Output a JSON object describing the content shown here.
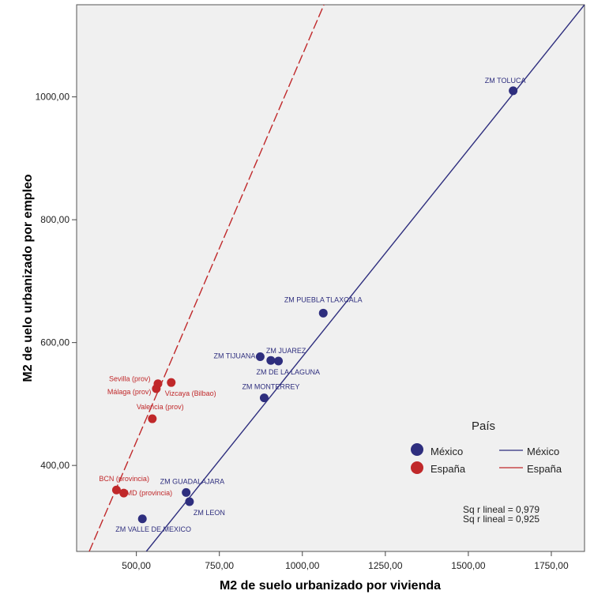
{
  "chart_data": {
    "type": "scatter",
    "xlabel": "M2 de suelo urbanizado por vivienda",
    "ylabel": "M2 de uelo urbanizado por empleo",
    "xlim": [
      320,
      1850
    ],
    "ylim": [
      260,
      1150
    ],
    "x_ticks": [
      500,
      750,
      1000,
      1250,
      1500,
      1750
    ],
    "x_tick_labels": [
      "500,00",
      "750,00",
      "1000,00",
      "1250,00",
      "1500,00",
      "1750,00"
    ],
    "y_ticks": [
      400,
      600,
      800,
      1000
    ],
    "y_tick_labels": [
      "400,00",
      "600,00",
      "800,00",
      "1000,00"
    ],
    "grid": false,
    "legend_placement": "bottom-right",
    "legend": {
      "title": "País",
      "marker_entries": [
        "México",
        "España"
      ],
      "line_entries": [
        "México",
        "España"
      ]
    },
    "fit_stats": [
      "Sq r lineal = 0,979",
      "Sq r lineal = 0,925"
    ],
    "series": [
      {
        "name": "México",
        "color": "#2e2e7e",
        "points": [
          {
            "x": 1635,
            "y": 1010,
            "label": "ZM TOLUCA"
          },
          {
            "x": 1063,
            "y": 648,
            "label": "ZM PUEBLA TLAXCALA"
          },
          {
            "x": 873,
            "y": 577,
            "label": "ZM TIJUANA"
          },
          {
            "x": 905,
            "y": 571,
            "label": "ZM JUAREZ"
          },
          {
            "x": 928,
            "y": 570,
            "label": "ZM DE LA LAGUNA"
          },
          {
            "x": 885,
            "y": 510,
            "label": "ZM MONTERREY"
          },
          {
            "x": 650,
            "y": 356,
            "label": "ZM GUADALAJARA"
          },
          {
            "x": 660,
            "y": 341,
            "label": "ZM LEON"
          },
          {
            "x": 518,
            "y": 313,
            "label": "ZM VALLE DE MEXICO"
          }
        ],
        "fit": {
          "x1": 530,
          "y1": 260,
          "x2": 1850,
          "y2": 1150
        }
      },
      {
        "name": "España",
        "color": "#c0282a",
        "points": [
          {
            "x": 565,
            "y": 533,
            "label": "Sevilla (prov)"
          },
          {
            "x": 560,
            "y": 525,
            "label": "Málaga (prov)"
          },
          {
            "x": 605,
            "y": 535,
            "label": "Vizcaya (Bilbao)"
          },
          {
            "x": 548,
            "y": 476,
            "label": "Valencia (prov)"
          },
          {
            "x": 440,
            "y": 360,
            "label": "BCN (provincia)"
          },
          {
            "x": 462,
            "y": 355,
            "label": "MD (provincia)"
          }
        ],
        "fit": {
          "x1": 358,
          "y1": 260,
          "x2": 1065,
          "y2": 1150
        }
      }
    ]
  }
}
